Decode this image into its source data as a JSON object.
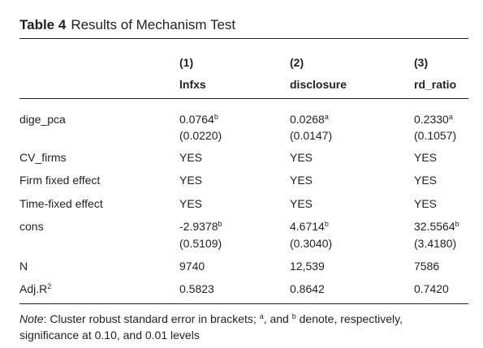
{
  "table": {
    "number": "Table 4",
    "title": "Results of Mechanism Test",
    "col_numbers": [
      "(1)",
      "(2)",
      "(3)"
    ],
    "col_names": [
      "lnfxs",
      "disclosure",
      "rd_ratio"
    ],
    "rows": {
      "dige_pca": {
        "label": "dige_pca",
        "values": [
          {
            "coef": "0.0764",
            "sup": "b",
            "se": "(0.0220)"
          },
          {
            "coef": "0.0268",
            "sup": "a",
            "se": "(0.0147)"
          },
          {
            "coef": "0.2330",
            "sup": "a",
            "se": "(0.1057)"
          }
        ]
      },
      "cv_firms": {
        "label": "CV_firms",
        "values": [
          "YES",
          "YES",
          "YES"
        ]
      },
      "firm_fe": {
        "label": "Firm fixed effect",
        "values": [
          "YES",
          "YES",
          "YES"
        ]
      },
      "time_fe": {
        "label": "Time-fixed effect",
        "values": [
          "YES",
          "YES",
          "YES"
        ]
      },
      "cons": {
        "label": "cons",
        "values": [
          {
            "coef": "-2.9378",
            "sup": "b",
            "se": "(0.5109)"
          },
          {
            "coef": "4.6714",
            "sup": "b",
            "se": "(0.3040)"
          },
          {
            "coef": "32.5564",
            "sup": "b",
            "se": "(3.4180)"
          }
        ]
      },
      "n": {
        "label": "N",
        "values": [
          "9740",
          "12,539",
          "7586"
        ]
      },
      "adjr2": {
        "label": "Adj.R",
        "label_sup": "2",
        "values": [
          "0.5823",
          "0.8642",
          "0.7420"
        ]
      }
    },
    "note": {
      "prefix": "Note",
      "part1": ": Cluster robust standard error in brackets; ",
      "sup_a": "a",
      "part2": ", and ",
      "sup_b": "b",
      "part3": " denote, respectively, significance at 0.10, and 0.01 levels"
    }
  }
}
